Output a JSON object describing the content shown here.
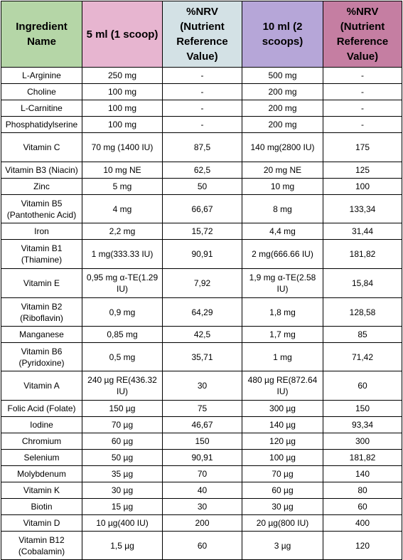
{
  "headers": [
    "Ingredient Name",
    "5 ml (1 scoop)",
    "%NRV (Nutrient Reference Value)",
    "10 ml (2 scoops)",
    "%NRV (Nutrient Reference Value)"
  ],
  "header_colors": [
    "#b5d6a7",
    "#e7b5d0",
    "#d3e1e5",
    "#b6a6d8",
    "#c57ea2"
  ],
  "rows": [
    [
      "L-Arginine",
      "250 mg",
      "-",
      "500 mg",
      "-"
    ],
    [
      "Choline",
      "100 mg",
      "-",
      "200 mg",
      "-"
    ],
    [
      "L-Carnitine",
      "100 mg",
      "-",
      "200 mg",
      "-"
    ],
    [
      "Phosphatidylserine",
      "100 mg",
      "-",
      "200 mg",
      "-"
    ],
    [
      "Vitamin C",
      "70 mg (1400 IU)",
      "87,5",
      "140 mg(2800 IU)",
      "175"
    ],
    [
      "Vitamin B3 (Niacin)",
      "10 mg NE",
      "62,5",
      "20 mg NE",
      "125"
    ],
    [
      "Zinc",
      "5 mg",
      "50",
      "10 mg",
      "100"
    ],
    [
      "Vitamin B5 (Pantothenic Acid)",
      "4 mg",
      "66,67",
      "8 mg",
      "133,34"
    ],
    [
      "Iron",
      "2,2 mg",
      "15,72",
      "4,4 mg",
      "31,44"
    ],
    [
      "Vitamin B1 (Thiamine)",
      "1 mg(333.33 IU)",
      "90,91",
      "2 mg(666.66 IU)",
      "181,82"
    ],
    [
      "Vitamin E",
      "0,95 mg α-TE(1.29 IU)",
      "7,92",
      "1,9 mg α-TE(2.58 IU)",
      "15,84"
    ],
    [
      "Vitamin B2 (Riboflavin)",
      "0,9 mg",
      "64,29",
      "1,8 mg",
      "128,58"
    ],
    [
      "Manganese",
      "0,85 mg",
      "42,5",
      "1,7 mg",
      "85"
    ],
    [
      "Vitamin B6 (Pyridoxine)",
      "0,5 mg",
      "35,71",
      "1 mg",
      "71,42"
    ],
    [
      "Vitamin A",
      "240 µg RE(436.32 IU)",
      "30",
      "480 µg RE(872.64 IU)",
      "60"
    ],
    [
      "Folic Acid (Folate)",
      "150 µg",
      "75",
      "300 µg",
      "150"
    ],
    [
      "Iodine",
      "70 µg",
      "46,67",
      "140 µg",
      "93,34"
    ],
    [
      "Chromium",
      "60 µg",
      "150",
      "120 µg",
      "300"
    ],
    [
      "Selenium",
      "50 µg",
      "90,91",
      "100 µg",
      "181,82"
    ],
    [
      "Molybdenum",
      "35 µg",
      "70",
      "70 µg",
      "140"
    ],
    [
      "Vitamin K",
      "30 µg",
      "40",
      "60 µg",
      "80"
    ],
    [
      "Biotin",
      "15 µg",
      "30",
      "30 µg",
      "60"
    ],
    [
      "Vitamin D",
      "10 µg(400 IU)",
      "200",
      "20 µg(800 IU)",
      "400"
    ],
    [
      "Vitamin B12 (Cobalamin)",
      "1,5 µg",
      "60",
      "3 µg",
      "120"
    ]
  ]
}
